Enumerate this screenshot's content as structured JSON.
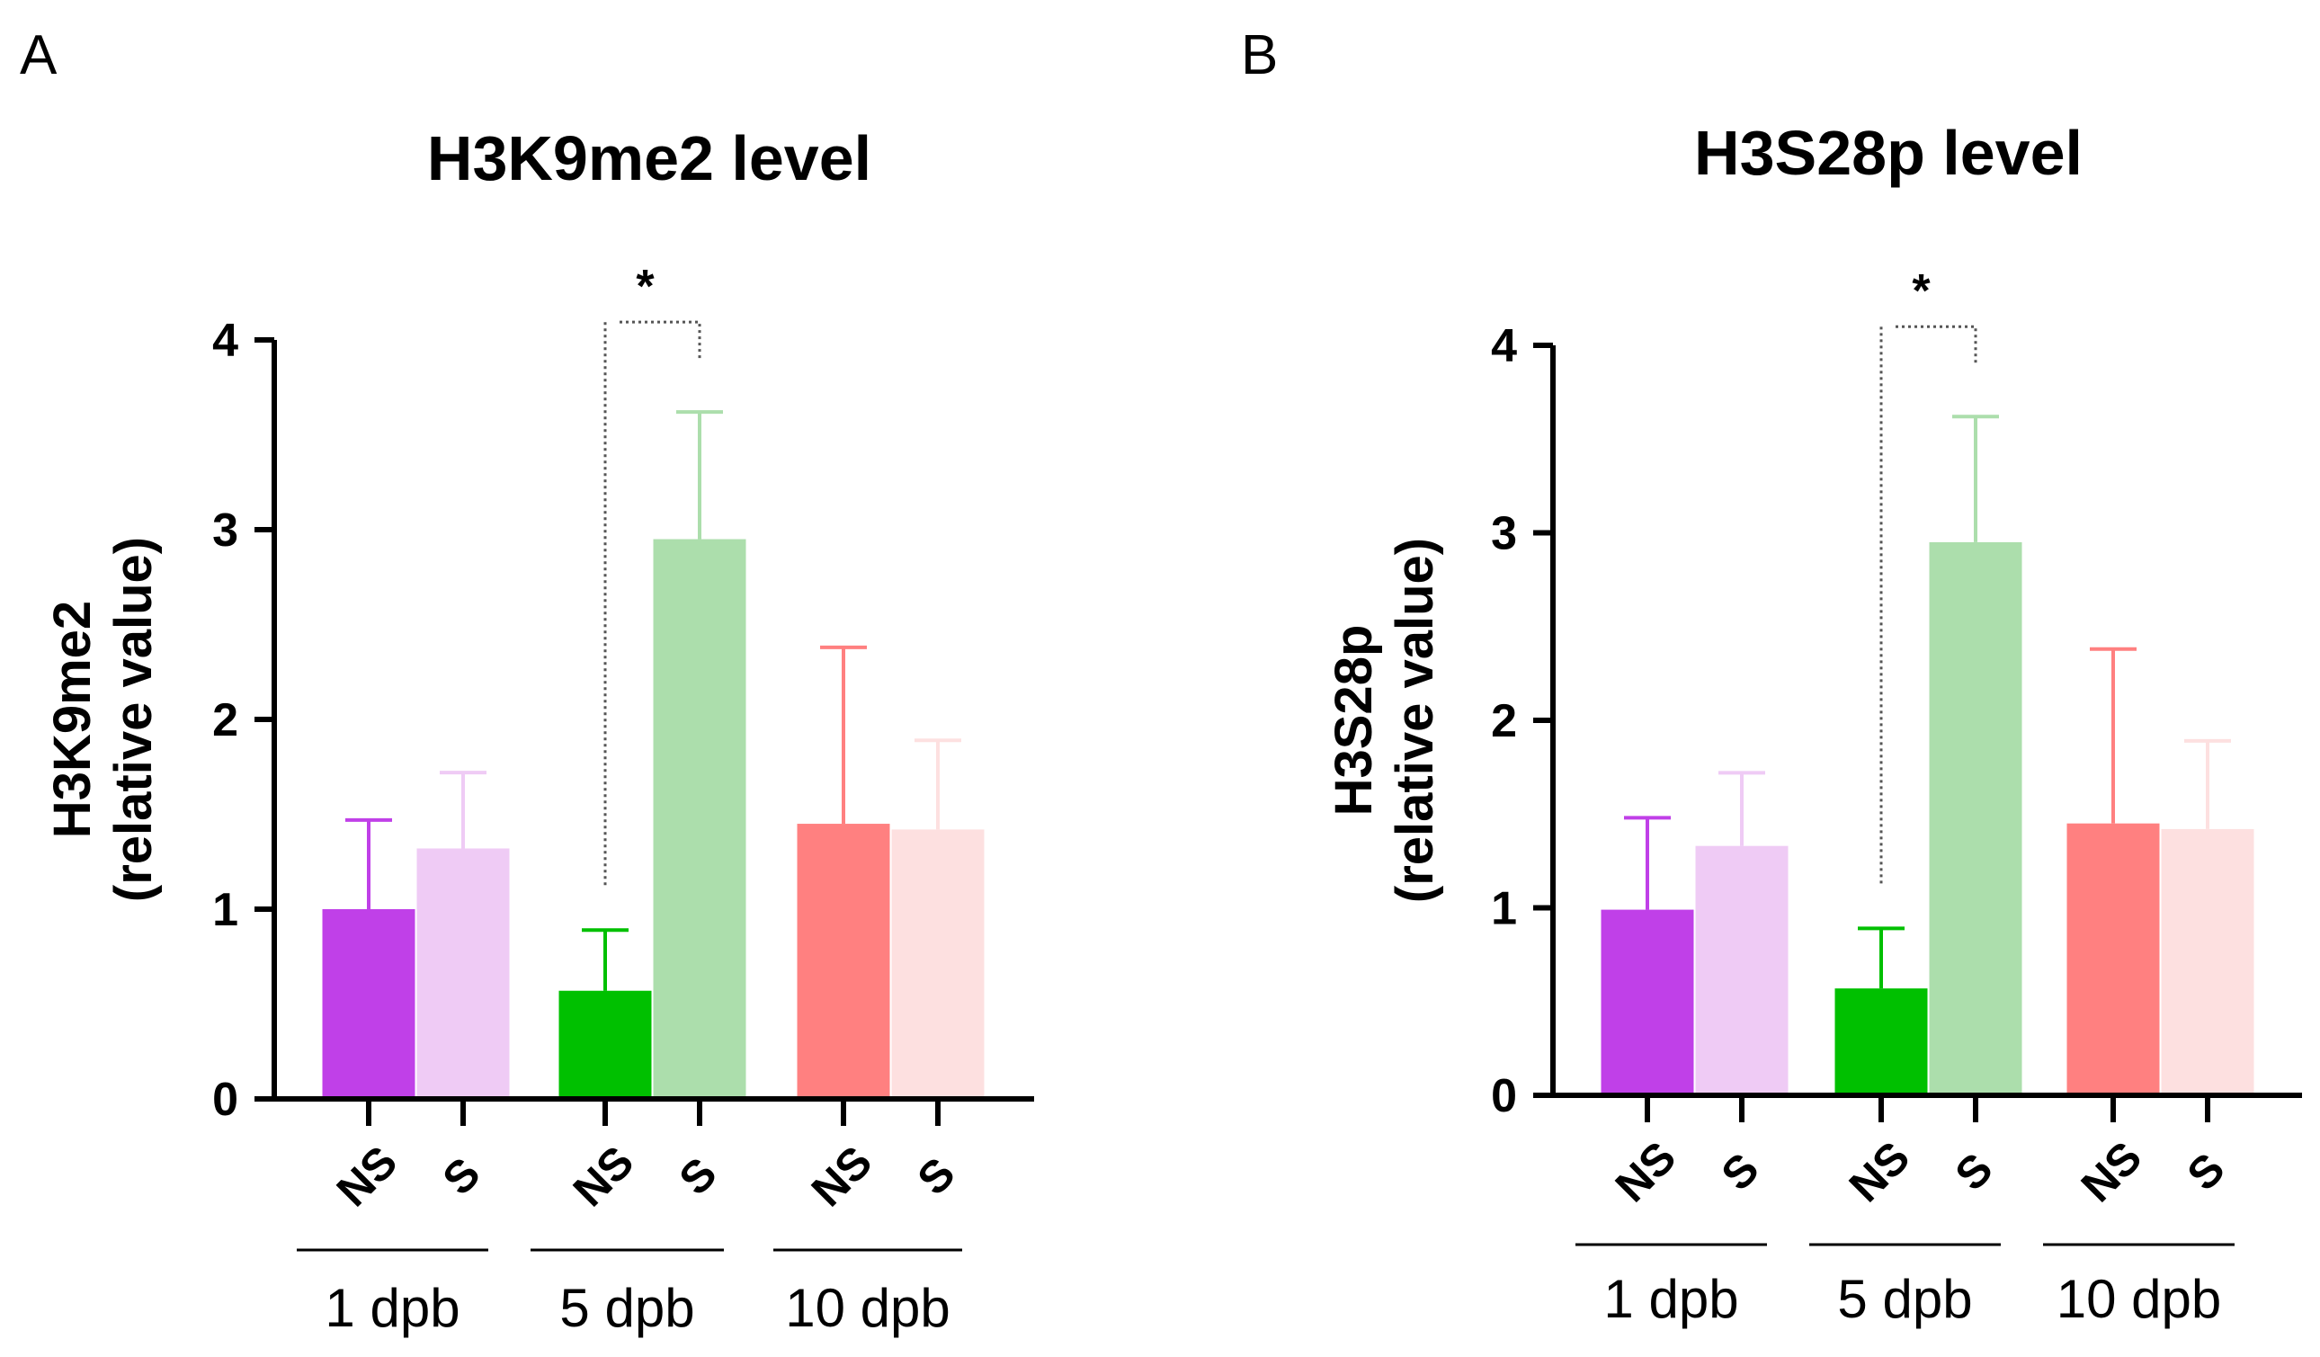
{
  "chart_data": [
    {
      "panel": "A",
      "type": "bar",
      "title": "H3K9me2 level",
      "ylabel_main": "H3K9me2",
      "ylabel_sub": "(relative value)",
      "ylim": [
        0,
        4
      ],
      "yticks": [
        "0",
        "1",
        "2",
        "3",
        "4"
      ],
      "groups": [
        {
          "label": "1 dpb",
          "categories": [
            "NS",
            "S"
          ]
        },
        {
          "label": "5 dpb",
          "categories": [
            "NS",
            "S"
          ]
        },
        {
          "label": "10 dpb",
          "categories": [
            "NS",
            "S"
          ]
        }
      ],
      "bars": [
        {
          "category": "NS",
          "group": "1 dpb",
          "value": 1.0,
          "error": 0.47,
          "color": "#c040e8",
          "error_color": "#c040e8"
        },
        {
          "category": "S",
          "group": "1 dpb",
          "value": 1.32,
          "error": 0.4,
          "color": "#efcbf5",
          "error_color": "#efcbf5"
        },
        {
          "category": "NS",
          "group": "5 dpb",
          "value": 0.57,
          "error": 0.32,
          "color": "#00c000",
          "error_color": "#00c000"
        },
        {
          "category": "S",
          "group": "5 dpb",
          "value": 2.95,
          "error": 0.67,
          "color": "#acdeac",
          "error_color": "#acdeac"
        },
        {
          "category": "NS",
          "group": "10 dpb",
          "value": 1.45,
          "error": 0.93,
          "color": "#ff8080",
          "error_color": "#ff8080"
        },
        {
          "category": "S",
          "group": "10 dpb",
          "value": 1.42,
          "error": 0.47,
          "color": "#fde0e0",
          "error_color": "#fde0e0"
        }
      ],
      "significance": {
        "label": "*",
        "between": [
          2,
          3
        ]
      }
    },
    {
      "panel": "B",
      "type": "bar",
      "title": "H3S28p level",
      "ylabel_main": "H3S28p",
      "ylabel_sub": "(relative value)",
      "ylim": [
        0,
        4
      ],
      "yticks": [
        "0",
        "1",
        "2",
        "3",
        "4"
      ],
      "groups": [
        {
          "label": "1 dpb",
          "categories": [
            "NS",
            "S"
          ]
        },
        {
          "label": "5 dpb",
          "categories": [
            "NS",
            "S"
          ]
        },
        {
          "label": "10 dpb",
          "categories": [
            "NS",
            "S"
          ]
        }
      ],
      "bars": [
        {
          "category": "NS",
          "group": "1 dpb",
          "value": 0.99,
          "error": 0.49,
          "color": "#c040e8",
          "error_color": "#c040e8"
        },
        {
          "category": "S",
          "group": "1 dpb",
          "value": 1.33,
          "error": 0.39,
          "color": "#efcbf5",
          "error_color": "#efcbf5"
        },
        {
          "category": "NS",
          "group": "5 dpb",
          "value": 0.57,
          "error": 0.32,
          "color": "#00c000",
          "error_color": "#00c000"
        },
        {
          "category": "S",
          "group": "5 dpb",
          "value": 2.95,
          "error": 0.67,
          "color": "#acdeac",
          "error_color": "#acdeac"
        },
        {
          "category": "NS",
          "group": "10 dpb",
          "value": 1.45,
          "error": 0.93,
          "color": "#ff8080",
          "error_color": "#ff8080"
        },
        {
          "category": "S",
          "group": "10 dpb",
          "value": 1.42,
          "error": 0.47,
          "color": "#fde0e0",
          "error_color": "#fde0e0"
        }
      ],
      "significance": {
        "label": "*",
        "between": [
          2,
          3
        ]
      }
    }
  ]
}
